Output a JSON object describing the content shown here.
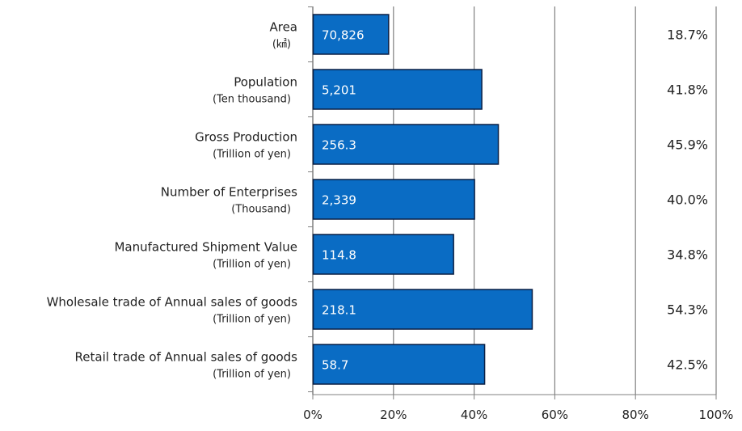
{
  "chart_data": {
    "type": "bar",
    "orientation": "horizontal",
    "categories": [
      {
        "label": "Area",
        "unit": "(㎢)"
      },
      {
        "label": "Population",
        "unit": "(Ten thousand)"
      },
      {
        "label": "Gross Production",
        "unit": "(Trillion of yen)"
      },
      {
        "label": "Number of Enterprises",
        "unit": "(Thousand)"
      },
      {
        "label": "Manufactured Shipment Value",
        "unit": "(Trillion of yen)"
      },
      {
        "label": "Wholesale trade of Annual sales of goods",
        "unit": "(Trillion of yen)"
      },
      {
        "label": "Retail trade of Annual sales of goods",
        "unit": "(Trillion of yen)"
      }
    ],
    "values": [
      18.7,
      41.8,
      45.9,
      40.0,
      34.8,
      54.3,
      42.5
    ],
    "bar_labels": [
      "70,826",
      "5,201",
      "256.3",
      "2,339",
      "114.8",
      "218.1",
      "58.7"
    ],
    "value_labels": [
      "18.7%",
      "41.8%",
      "45.9%",
      "40.0%",
      "34.8%",
      "54.3%",
      "42.5%"
    ],
    "xlim": [
      0,
      100
    ],
    "x_ticks": [
      "0%",
      "20%",
      "40%",
      "60%",
      "80%",
      "100%"
    ],
    "grid": true,
    "colors": {
      "bar": "#0a6cc4",
      "bar_border": "#0a1f44",
      "grid": "#808080",
      "axis": "#808080"
    }
  }
}
